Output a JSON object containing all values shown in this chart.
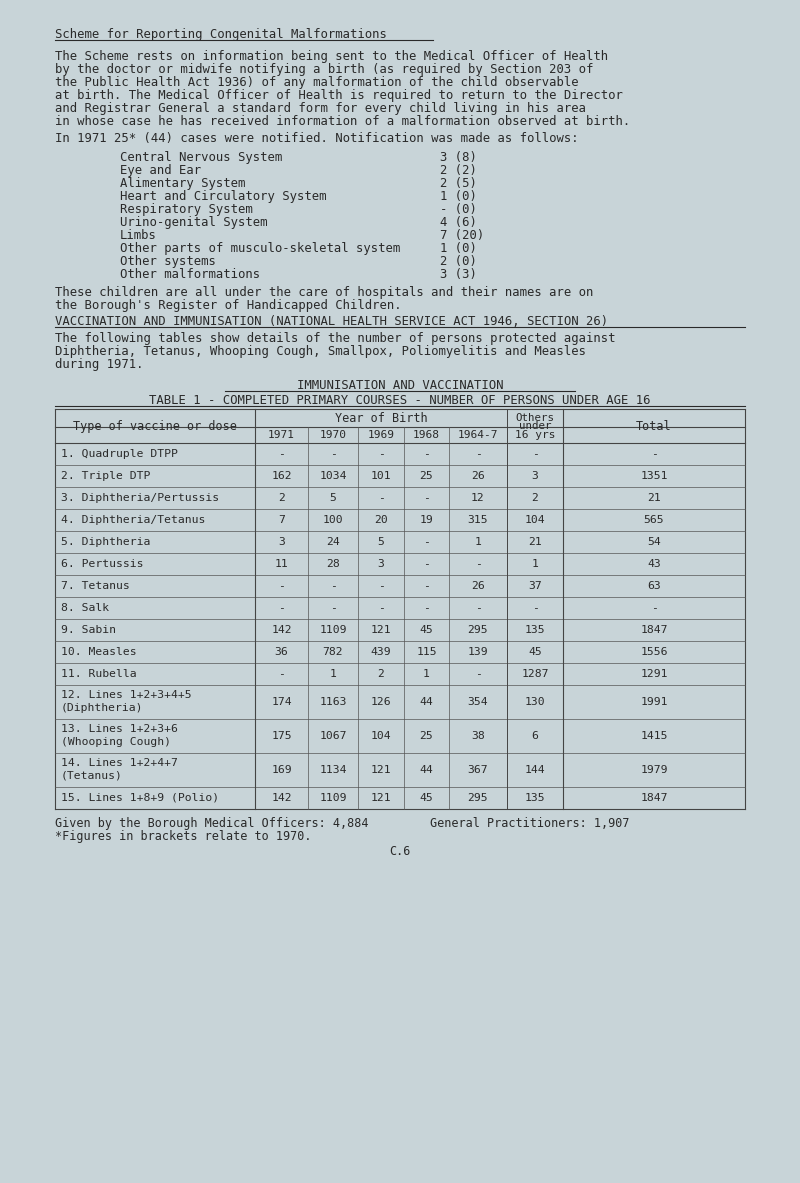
{
  "bg_color": "#c8d4d8",
  "text_color": "#2a2a2a",
  "title1": "Scheme for Reporting Congenital Malformations",
  "para1": "The Scheme rests on information being sent to the Medical Officer of Health\nby the doctor or midwife notifying a birth (as required by Section 203 of\nthe Public Health Act 1936) of any malformation of the child observable\nat birth. The Medical Officer of Health is required to return to the Director\nand Registrar General a standard form for every child living in his area\nin whose case he has received information of a malformation observed at birth.",
  "para2": "In 1971 25* (44) cases were notified. Notification was made as follows:",
  "malformation_items": [
    [
      "Central Nervous System",
      "3 (8)"
    ],
    [
      "Eye and Ear",
      "2 (2)"
    ],
    [
      "Alimentary System",
      "2 (5)"
    ],
    [
      "Heart and Circulatory System",
      "1 (0)"
    ],
    [
      "Respiratory System",
      "- (0)"
    ],
    [
      "Urino-genital System",
      "4 (6)"
    ],
    [
      "Limbs",
      "7 (20)"
    ],
    [
      "Other parts of musculo-skeletal system",
      "1 (0)"
    ],
    [
      "Other systems",
      "2 (0)"
    ],
    [
      "Other malformations",
      "3 (3)"
    ]
  ],
  "para3": "These children are all under the care of hospitals and their names are on\nthe Borough's Register of Handicapped Children.",
  "section_heading": "VACCINATION AND IMMUNISATION (NATIONAL HEALTH SERVICE ACT 1946, SECTION 26)",
  "para4": "The following tables show details of the number of persons protected against\nDiphtheria, Tetanus, Whooping Cough, Smallpox, Poliomyelitis and Measles\nduring 1971.",
  "table_title1": "IMMUNISATION AND VACCINATION",
  "table_title2": "TABLE 1 - COMPLETED PRIMARY COURSES - NUMBER OF PERSONS UNDER AGE 16",
  "table_rows": [
    [
      "1. Quadruple DTPP",
      "-",
      "-",
      "-",
      "-",
      "-",
      "-",
      "-"
    ],
    [
      "2. Triple DTP",
      "162",
      "1034",
      "101",
      "25",
      "26",
      "3",
      "1351"
    ],
    [
      "3. Diphtheria/Pertussis",
      "2",
      "5",
      "-",
      "-",
      "12",
      "2",
      "21"
    ],
    [
      "4. Diphtheria/Tetanus",
      "7",
      "100",
      "20",
      "19",
      "315",
      "104",
      "565"
    ],
    [
      "5. Diphtheria",
      "3",
      "24",
      "5",
      "-",
      "1",
      "21",
      "54"
    ],
    [
      "6. Pertussis",
      "11",
      "28",
      "3",
      "-",
      "-",
      "1",
      "43"
    ],
    [
      "7. Tetanus",
      "-",
      "-",
      "-",
      "-",
      "26",
      "37",
      "63"
    ],
    [
      "8. Salk",
      "-",
      "-",
      "-",
      "-",
      "-",
      "-",
      "-"
    ],
    [
      "9. Sabin",
      "142",
      "1109",
      "121",
      "45",
      "295",
      "135",
      "1847"
    ],
    [
      "10. Measles",
      "36",
      "782",
      "439",
      "115",
      "139",
      "45",
      "1556"
    ],
    [
      "11. Rubella",
      "-",
      "1",
      "2",
      "1",
      "-",
      "1287",
      "1291"
    ],
    [
      "12. Lines 1+2+3+4+5",
      "174",
      "1163",
      "126",
      "44",
      "354",
      "130",
      "1991"
    ],
    [
      "13. Lines 1+2+3+6",
      "175",
      "1067",
      "104",
      "25",
      "38",
      "6",
      "1415"
    ],
    [
      "14. Lines 1+2+4+7",
      "169",
      "1134",
      "121",
      "44",
      "367",
      "144",
      "1979"
    ],
    [
      "15. Lines 1+8+9 (Polio)",
      "142",
      "1109",
      "121",
      "45",
      "295",
      "135",
      "1847"
    ]
  ],
  "row_sub": {
    "12": "(Diphtheria)",
    "13": "(Whooping Cough)",
    "14": "(Tetanus)"
  },
  "footer1": "Given by the Borough Medical Officers: 4,884",
  "footer2": "General Practitioners: 1,907",
  "footer3": "*Figures in brackets relate to 1970.",
  "page_ref": "C.6"
}
